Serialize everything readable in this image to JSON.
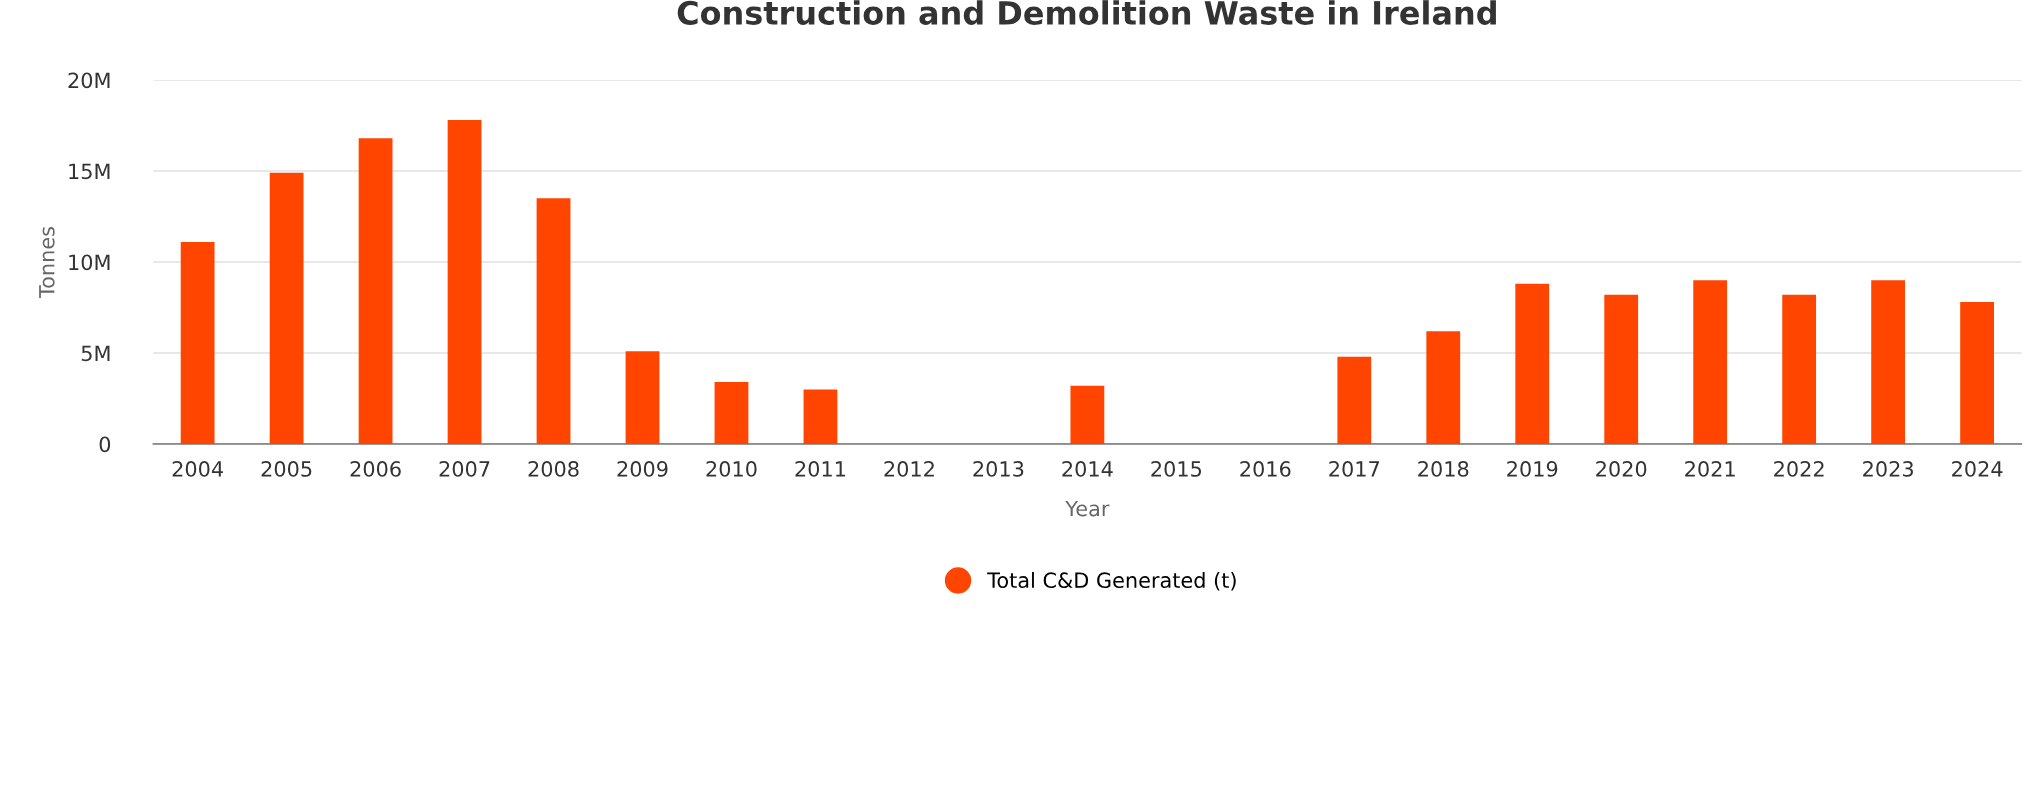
{
  "chart_data": {
    "type": "bar",
    "title": "Construction and Demolition Waste in Ireland",
    "xlabel": "Year",
    "ylabel": "Tonnes",
    "categories": [
      "2004",
      "2005",
      "2006",
      "2007",
      "2008",
      "2009",
      "2010",
      "2011",
      "2012",
      "2013",
      "2014",
      "2015",
      "2016",
      "2017",
      "2018",
      "2019",
      "2020",
      "2021",
      "2022",
      "2023",
      "2024"
    ],
    "series": [
      {
        "name": "Total C&D Generated (t)",
        "color": "#ff4500",
        "values": [
          11100000,
          14900000,
          16800000,
          17800000,
          13500000,
          5100000,
          3400000,
          3000000,
          null,
          null,
          3200000,
          null,
          null,
          4800000,
          6200000,
          8800000,
          8200000,
          9000000,
          8200000,
          9000000,
          7800000
        ]
      }
    ],
    "ylim": [
      0,
      20000000
    ],
    "yticks": [
      0,
      {
        "value": 5000000,
        "label": "5M"
      },
      {
        "value": 10000000,
        "label": "10M"
      },
      {
        "value": 15000000,
        "label": "15M"
      },
      {
        "value": 20000000,
        "label": "20M"
      }
    ],
    "grid": "y",
    "legend": "bottom"
  }
}
